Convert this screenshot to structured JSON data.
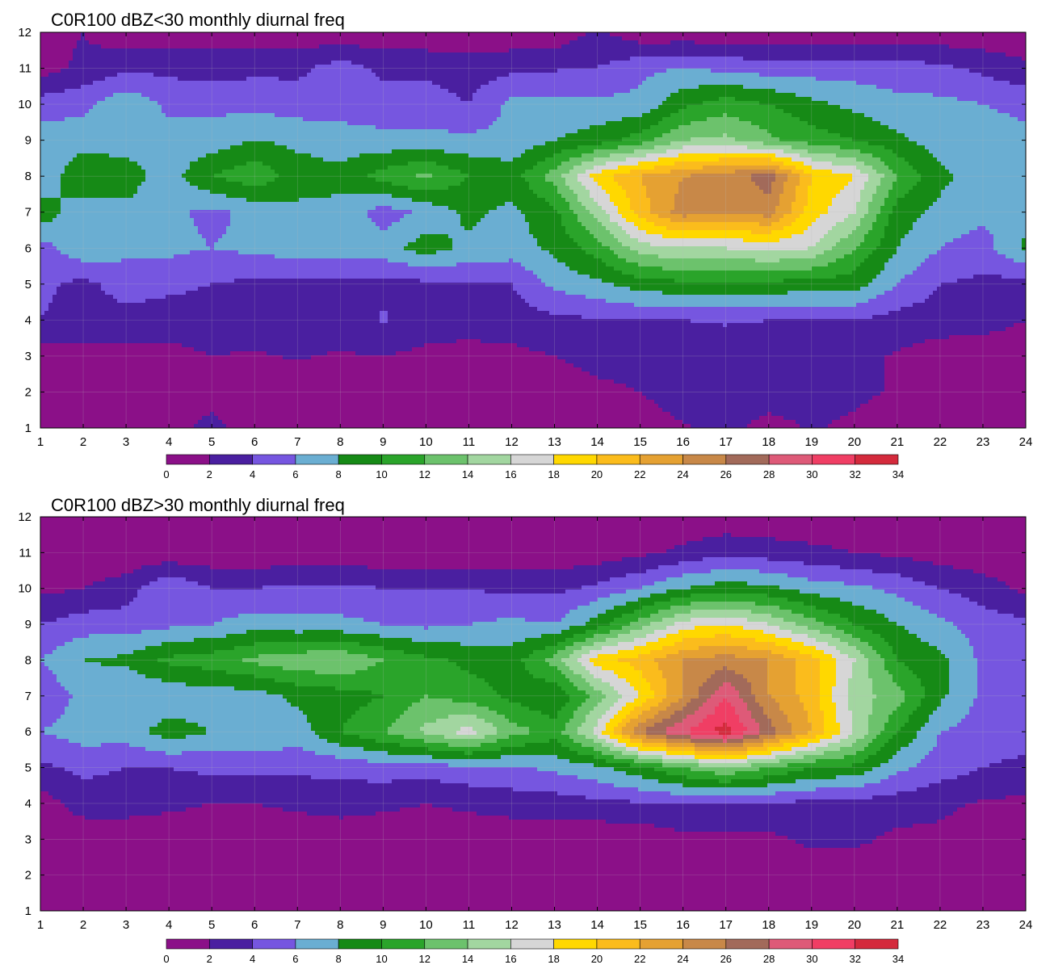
{
  "chart_data": [
    {
      "type": "heatmap",
      "title": "C0R100 dBZ<30 monthly diurnal freq",
      "xlabel": "",
      "ylabel": "",
      "x_ticks": [
        1,
        2,
        3,
        4,
        5,
        6,
        7,
        8,
        9,
        10,
        11,
        12,
        13,
        14,
        15,
        16,
        17,
        18,
        19,
        20,
        21,
        22,
        23,
        24
      ],
      "y_ticks": [
        1,
        2,
        3,
        4,
        5,
        6,
        7,
        8,
        9,
        10,
        11,
        12
      ],
      "xlim": [
        1,
        24
      ],
      "ylim": [
        1,
        12
      ],
      "grid": true,
      "contour_levels": [
        0,
        2,
        4,
        6,
        8,
        10,
        12,
        14,
        16,
        18,
        20,
        22,
        24,
        26,
        28,
        30,
        32,
        34
      ],
      "colorbar_colors": [
        "#8b1088",
        "#4a1fa0",
        "#7656e0",
        "#6aaed2",
        "#168a16",
        "#2aa42a",
        "#6cc26c",
        "#a2d6a0",
        "#d6d6d6",
        "#ffd800",
        "#fbbc1c",
        "#e5a132",
        "#c88848",
        "#a26a5a",
        "#de5a78",
        "#f03e64",
        "#d42a3c"
      ],
      "legend": "bottom colorbar",
      "values": [
        [
          0.5,
          0.5,
          0.5,
          0.8,
          3.0,
          0.5,
          0.5,
          0.5,
          1.8,
          2.0,
          1.0,
          0.5,
          0.5,
          0.5,
          1.0,
          1.8,
          2.6,
          1.2,
          2.2,
          1.5,
          0.5,
          0.5,
          0.5,
          0.5
        ],
        [
          0.5,
          0.5,
          0.5,
          0.5,
          0.5,
          0.5,
          0.5,
          0.5,
          0.5,
          0.5,
          0.5,
          0.5,
          0.8,
          1.5,
          2.0,
          3.0,
          3.0,
          3.2,
          3.0,
          2.5,
          1.8,
          0.5,
          0.5,
          0.5
        ],
        [
          1.0,
          1.4,
          1.2,
          1.4,
          2.0,
          1.8,
          2.2,
          1.8,
          2.0,
          1.5,
          1.2,
          1.5,
          2.0,
          2.8,
          2.8,
          3.0,
          2.8,
          3.0,
          2.6,
          2.5,
          1.8,
          1.0,
          0.5,
          0.5
        ],
        [
          4.0,
          3.0,
          3.2,
          3.0,
          3.0,
          3.0,
          3.0,
          3.0,
          4.2,
          3.0,
          3.0,
          3.0,
          3.5,
          3.8,
          4.0,
          4.0,
          4.2,
          4.0,
          4.0,
          4.0,
          3.2,
          3.0,
          3.0,
          2.0
        ],
        [
          4.5,
          3.4,
          5.0,
          4.5,
          4.0,
          3.5,
          3.5,
          3.5,
          3.5,
          3.5,
          3.8,
          4.0,
          6.5,
          7.5,
          9.0,
          9.5,
          9.5,
          9.5,
          9.0,
          9.0,
          6.0,
          4.0,
          3.6,
          3.0
        ],
        [
          5.0,
          7.5,
          6.5,
          6.5,
          6.0,
          6.5,
          7.0,
          7.0,
          7.0,
          9.0,
          7.5,
          7.0,
          8.5,
          11.0,
          15.0,
          16.0,
          16.0,
          16.5,
          16.0,
          12.0,
          8.0,
          6.0,
          5.0,
          8.5
        ],
        [
          9.5,
          6.5,
          7.5,
          6.5,
          5.5,
          6.5,
          7.5,
          7.5,
          5.0,
          6.5,
          8.5,
          7.5,
          9.5,
          15.0,
          21.0,
          25.0,
          24.0,
          25.0,
          19.0,
          16.0,
          9.0,
          7.5,
          6.5,
          7.0
        ],
        [
          6.0,
          10.0,
          9.0,
          7.0,
          10.0,
          11.5,
          9.0,
          8.5,
          11.0,
          12.5,
          10.0,
          9.0,
          13.0,
          19.0,
          22.0,
          24.0,
          25.0,
          27.0,
          20.0,
          18.0,
          12.0,
          8.5,
          7.0,
          6.5
        ],
        [
          7.0,
          7.0,
          7.0,
          7.0,
          6.8,
          8.0,
          7.5,
          7.0,
          6.5,
          6.5,
          6.5,
          6.5,
          8.0,
          9.0,
          11.0,
          14.0,
          14.5,
          12.5,
          11.0,
          10.0,
          8.5,
          7.0,
          7.0,
          6.5
        ],
        [
          5.0,
          5.5,
          7.5,
          5.5,
          5.5,
          5.5,
          5.0,
          5.0,
          5.0,
          5.0,
          4.0,
          6.5,
          6.5,
          6.5,
          6.5,
          9.5,
          11.0,
          10.0,
          8.5,
          7.5,
          6.5,
          6.5,
          6.0,
          5.5
        ],
        [
          1.0,
          2.5,
          3.5,
          3.5,
          3.0,
          3.5,
          3.5,
          5.0,
          3.5,
          3.5,
          3.0,
          3.5,
          3.8,
          4.0,
          5.5,
          6.0,
          5.5,
          5.0,
          5.0,
          5.0,
          5.0,
          4.5,
          3.5,
          2.5
        ],
        [
          1.0,
          2.0,
          0.5,
          0.5,
          1.0,
          1.0,
          0.5,
          0.5,
          0.5,
          0.5,
          0.5,
          0.5,
          0.5,
          2.5,
          0.5,
          0.5,
          0.5,
          0.5,
          0.5,
          0.5,
          0.5,
          0.5,
          0.5,
          0.5
        ]
      ]
    },
    {
      "type": "heatmap",
      "title": "C0R100 dBZ>30 monthly diurnal freq",
      "xlabel": "",
      "ylabel": "",
      "x_ticks": [
        1,
        2,
        3,
        4,
        5,
        6,
        7,
        8,
        9,
        10,
        11,
        12,
        13,
        14,
        15,
        16,
        17,
        18,
        19,
        20,
        21,
        22,
        23,
        24
      ],
      "y_ticks": [
        1,
        2,
        3,
        4,
        5,
        6,
        7,
        8,
        9,
        10,
        11,
        12
      ],
      "xlim": [
        1,
        24
      ],
      "ylim": [
        1,
        12
      ],
      "grid": true,
      "contour_levels": [
        0,
        2,
        4,
        6,
        8,
        10,
        12,
        14,
        16,
        18,
        20,
        22,
        24,
        26,
        28,
        30,
        32,
        34
      ],
      "colorbar_colors": [
        "#8b1088",
        "#4a1fa0",
        "#7656e0",
        "#6aaed2",
        "#168a16",
        "#2aa42a",
        "#6cc26c",
        "#a2d6a0",
        "#d6d6d6",
        "#ffd800",
        "#fbbc1c",
        "#e5a132",
        "#c88848",
        "#a26a5a",
        "#de5a78",
        "#f03e64",
        "#d42a3c"
      ],
      "legend": "bottom colorbar",
      "values": [
        [
          0.5,
          0.5,
          0.5,
          0.5,
          0.5,
          0.5,
          0.5,
          0.5,
          0.5,
          0.5,
          0.5,
          0.5,
          0.5,
          0.5,
          0.5,
          0.5,
          0.5,
          0.5,
          0.5,
          0.5,
          0.5,
          0.5,
          0.5,
          0.5
        ],
        [
          0.5,
          0.5,
          0.5,
          0.5,
          0.5,
          0.5,
          0.5,
          0.5,
          0.5,
          0.5,
          0.5,
          0.5,
          0.5,
          0.5,
          0.5,
          0.5,
          0.5,
          0.5,
          0.5,
          0.5,
          0.5,
          0.5,
          0.5,
          0.5
        ],
        [
          0.5,
          0.5,
          0.5,
          0.5,
          0.5,
          0.5,
          0.5,
          0.5,
          0.5,
          0.5,
          0.5,
          0.5,
          0.5,
          0.5,
          0.5,
          1.5,
          1.5,
          1.5,
          2.5,
          2.5,
          1.5,
          1.5,
          0.5,
          0.5
        ],
        [
          1.0,
          3.0,
          3.0,
          2.5,
          2.0,
          2.0,
          2.5,
          3.0,
          2.5,
          2.0,
          2.5,
          3.0,
          3.0,
          3.5,
          3.8,
          4.0,
          4.0,
          3.8,
          3.5,
          3.2,
          3.0,
          2.5,
          1.8,
          1.5
        ],
        [
          3.5,
          4.5,
          4.0,
          4.0,
          4.5,
          4.5,
          4.5,
          4.5,
          5.0,
          5.0,
          5.5,
          5.5,
          6.5,
          7.5,
          9.5,
          12.0,
          14.0,
          12.0,
          10.0,
          9.5,
          6.5,
          5.0,
          4.0,
          3.5
        ],
        [
          6.0,
          7.0,
          7.0,
          9.0,
          8.0,
          8.0,
          7.0,
          10.0,
          12.0,
          14.5,
          17.0,
          13.0,
          11.0,
          17.0,
          26.0,
          30.0,
          33.0,
          27.0,
          22.0,
          16.0,
          10.0,
          6.0,
          5.0,
          5.0
        ],
        [
          4.5,
          6.5,
          6.0,
          6.5,
          7.0,
          7.0,
          8.5,
          9.0,
          10.0,
          12.0,
          11.0,
          9.5,
          8.0,
          13.0,
          18.0,
          24.0,
          30.0,
          24.0,
          21.0,
          15.0,
          13.0,
          8.5,
          5.5,
          4.5
        ],
        [
          6.0,
          8.0,
          8.5,
          10.5,
          11.0,
          12.5,
          13.5,
          14.0,
          12.0,
          10.5,
          9.5,
          9.0,
          13.0,
          19.0,
          21.0,
          24.0,
          25.0,
          24.0,
          21.0,
          16.0,
          10.0,
          8.5,
          5.5,
          4.5
        ],
        [
          4.0,
          5.0,
          5.0,
          5.5,
          6.0,
          7.0,
          6.5,
          6.5,
          6.0,
          5.5,
          6.0,
          6.5,
          6.0,
          9.0,
          13.0,
          17.0,
          18.0,
          16.0,
          13.0,
          10.0,
          8.0,
          6.5,
          5.0,
          4.5
        ],
        [
          1.5,
          2.0,
          3.0,
          6.0,
          4.0,
          4.0,
          4.5,
          4.5,
          4.0,
          4.0,
          4.0,
          3.5,
          3.5,
          4.5,
          6.0,
          8.0,
          9.0,
          8.5,
          7.0,
          6.5,
          5.5,
          4.0,
          3.0,
          1.5
        ],
        [
          0.5,
          0.5,
          0.5,
          0.5,
          0.5,
          0.5,
          0.5,
          0.5,
          0.5,
          0.5,
          0.5,
          0.5,
          0.5,
          0.8,
          1.5,
          2.5,
          3.5,
          3.0,
          2.5,
          2.0,
          1.5,
          1.0,
          0.5,
          0.5
        ],
        [
          0.5,
          0.5,
          0.5,
          0.5,
          0.5,
          0.5,
          0.5,
          0.5,
          0.5,
          0.5,
          0.5,
          0.5,
          0.5,
          0.5,
          0.5,
          0.5,
          0.5,
          0.5,
          0.5,
          0.5,
          0.5,
          0.5,
          0.5,
          0.5
        ]
      ]
    }
  ]
}
